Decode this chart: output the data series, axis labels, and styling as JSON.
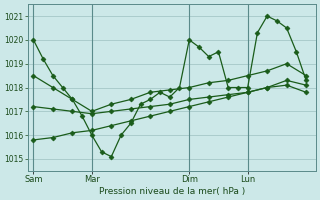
{
  "xlabel": "Pression niveau de la mer( hPa )",
  "ylim": [
    1014.5,
    1021.5
  ],
  "xlim": [
    -0.3,
    14.5
  ],
  "yticks": [
    1015,
    1016,
    1017,
    1018,
    1019,
    1020,
    1021
  ],
  "background_color": "#cce8e8",
  "grid_color": "#aacccc",
  "line_color": "#1a5c1a",
  "fig_bg": "#cce8e8",
  "xtick_positions": [
    0,
    3,
    8,
    11
  ],
  "xtick_labels": [
    "Sam",
    "Mar",
    "Dim",
    "Lun"
  ],
  "vline_positions": [
    0,
    3,
    8,
    11
  ],
  "series1_x": [
    0,
    0.5,
    1,
    1.5,
    2,
    2.5,
    3,
    3.5,
    4,
    4.5,
    5,
    5.5,
    6,
    6.5,
    7,
    7.5,
    8,
    8.5,
    9,
    9.5,
    10,
    10.5,
    11,
    11.5,
    12,
    12.5,
    13,
    13.5,
    14
  ],
  "series1_y": [
    1020.0,
    1019.2,
    1018.5,
    1018.0,
    1017.5,
    1016.8,
    1016.0,
    1015.3,
    1015.1,
    1016.0,
    1016.5,
    1017.3,
    1017.5,
    1017.8,
    1017.6,
    1018.0,
    1020.0,
    1019.7,
    1019.3,
    1019.5,
    1018.0,
    1018.0,
    1018.0,
    1020.3,
    1021.0,
    1020.8,
    1020.5,
    1019.5,
    1018.3
  ],
  "series2_x": [
    0,
    1,
    2,
    3,
    4,
    5,
    6,
    7,
    8,
    9,
    10,
    11,
    12,
    13,
    14
  ],
  "series2_y": [
    1018.5,
    1018.0,
    1017.5,
    1017.0,
    1017.3,
    1017.5,
    1017.8,
    1017.9,
    1018.0,
    1018.2,
    1018.3,
    1018.5,
    1018.7,
    1019.0,
    1018.5
  ],
  "series3_x": [
    0,
    1,
    2,
    3,
    4,
    5,
    6,
    7,
    8,
    9,
    10,
    11,
    12,
    13,
    14
  ],
  "series3_y": [
    1017.2,
    1017.1,
    1017.0,
    1016.9,
    1017.0,
    1017.1,
    1017.2,
    1017.3,
    1017.5,
    1017.6,
    1017.7,
    1017.8,
    1018.0,
    1018.1,
    1017.8
  ],
  "series4_x": [
    0,
    1,
    2,
    3,
    4,
    5,
    6,
    7,
    8,
    9,
    10,
    11,
    12,
    13,
    14
  ],
  "series4_y": [
    1015.8,
    1015.9,
    1016.1,
    1016.2,
    1016.4,
    1016.6,
    1016.8,
    1017.0,
    1017.2,
    1017.4,
    1017.6,
    1017.8,
    1018.0,
    1018.3,
    1018.1
  ]
}
